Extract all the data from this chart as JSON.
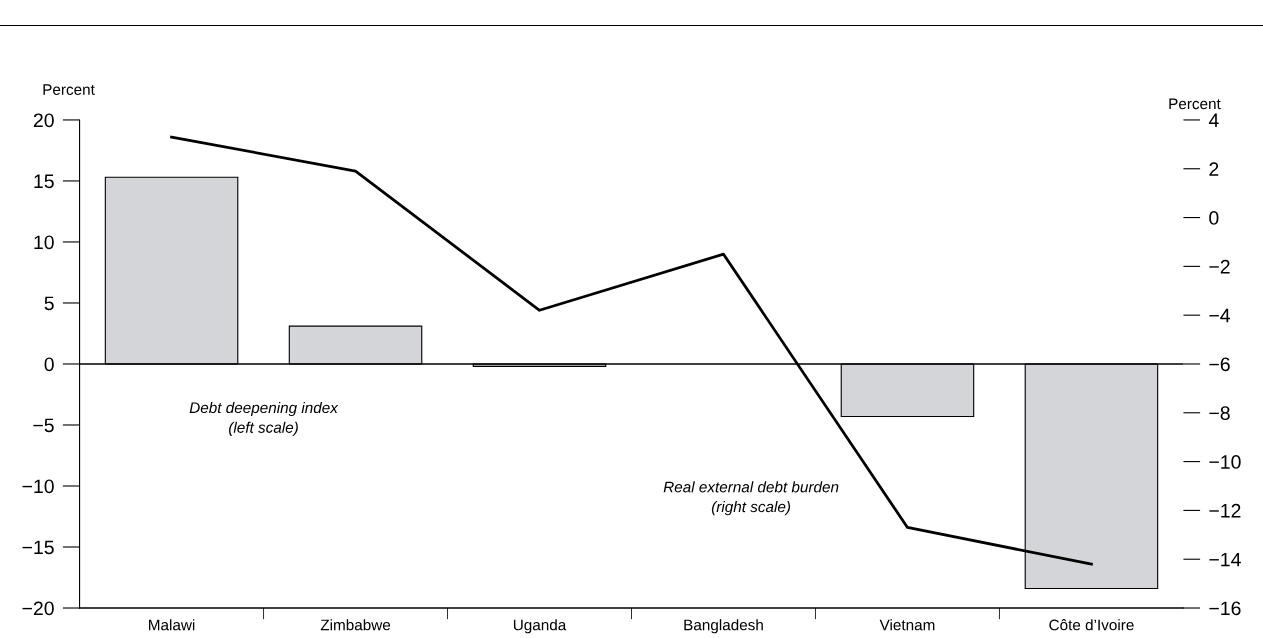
{
  "chart_data": {
    "type": "bar",
    "categories": [
      "Malawi",
      "Zimbabwe",
      "Uganda",
      "Bangladesh",
      "Vietnam",
      "Côte d’Ivoire"
    ],
    "series": [
      {
        "color": "#d4d5d8",
        "values": [
          15.3,
          3.1,
          -0.2,
          null,
          -4.3,
          -18.4
        ]
      },
      {
        "type": "line",
        "axis": "y2",
        "color": "#000000",
        "values": [
          3.3,
          1.9,
          -3.8,
          -1.5,
          -12.7,
          -14.2
        ]
      }
    ],
    "ylabel": "Percent",
    "y2label": "Percent",
    "ylim": [
      -20,
      20
    ],
    "yticks": [
      {
        "value": -20,
        "label": "−20"
      },
      {
        "value": -15,
        "label": "−15"
      },
      {
        "value": -10,
        "label": "−10"
      },
      {
        "value": -5,
        "label": "−5"
      },
      0,
      5,
      10,
      15,
      20
    ],
    "y2lim": [
      -16,
      4
    ],
    "y2ticks": [
      {
        "value": -16,
        "label": "−16"
      },
      {
        "value": -14,
        "label": "−14"
      },
      {
        "value": -12,
        "label": "−12"
      },
      {
        "value": -10,
        "label": "−10"
      },
      {
        "value": -8,
        "label": "−8"
      },
      {
        "value": -6,
        "label": "−6"
      },
      {
        "value": -4,
        "label": "−4"
      },
      {
        "value": -2,
        "label": "−2"
      },
      0,
      2,
      4
    ],
    "ref_lines": [
      {
        "axis": "y",
        "value": 0,
        "color": "#000000"
      }
    ],
    "annotations": [
      "Debt deepening index\n(left scale)",
      "Real external debt burden\n(right scale)"
    ],
    "grid": false,
    "marker": "none",
    "line_style": "solid"
  }
}
